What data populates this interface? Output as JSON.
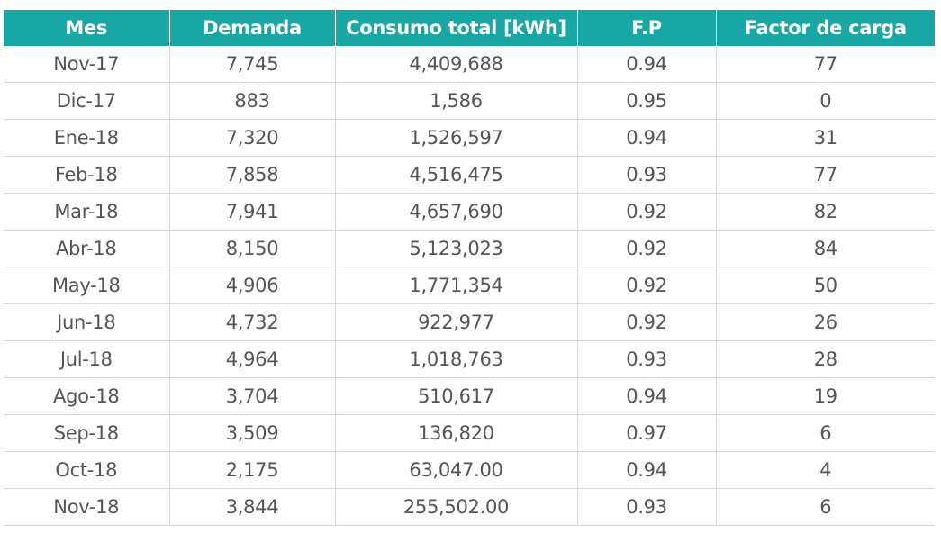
{
  "table": {
    "headers": [
      "Mes",
      "Demanda",
      "Consumo total [kWh]",
      "F.P",
      "Factor de carga"
    ],
    "rows": [
      [
        "Nov-17",
        "7,745",
        "4,409,688",
        "0.94",
        "77"
      ],
      [
        "Dic-17",
        "883",
        "1,586",
        "0.95",
        "0"
      ],
      [
        "Ene-18",
        "7,320",
        "1,526,597",
        "0.94",
        "31"
      ],
      [
        "Feb-18",
        "7,858",
        "4,516,475",
        "0.93",
        "77"
      ],
      [
        "Mar-18",
        "7,941",
        "4,657,690",
        "0.92",
        "82"
      ],
      [
        "Abr-18",
        "8,150",
        "5,123,023",
        "0.92",
        "84"
      ],
      [
        "May-18",
        "4,906",
        "1,771,354",
        "0.92",
        "50"
      ],
      [
        "Jun-18",
        "4,732",
        "922,977",
        "0.92",
        "26"
      ],
      [
        "Jul-18",
        "4,964",
        "1,018,763",
        "0.93",
        "28"
      ],
      [
        "Ago-18",
        "3,704",
        "510,617",
        "0.94",
        "19"
      ],
      [
        "Sep-18",
        "3,509",
        "136,820",
        "0.97",
        "6"
      ],
      [
        "Oct-18",
        "2,175",
        "63,047.00",
        "0.94",
        "4"
      ],
      [
        "Nov-18",
        "3,844",
        "255,502.00",
        "0.93",
        "6"
      ]
    ]
  },
  "colors": {
    "header_bg": "#19a7a5",
    "header_text": "#ffffff",
    "body_text": "#555555",
    "grid": "#d6d6d6"
  }
}
